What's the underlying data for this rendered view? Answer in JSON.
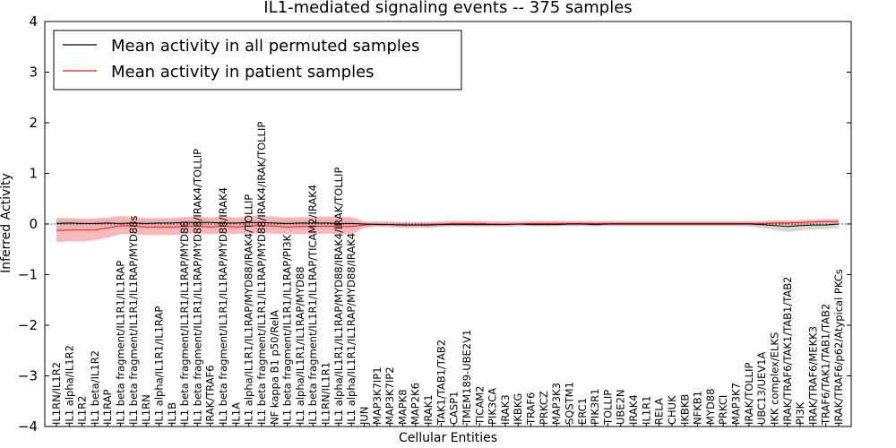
{
  "chart_data": {
    "type": "line",
    "title": "IL1-mediated signaling events -- 375 samples",
    "xlabel": "Cellular Entities",
    "ylabel": "Inferred Activity",
    "ylim": [
      -4,
      4
    ],
    "yticks": [
      "−4",
      "−3",
      "−2",
      "−1",
      "0",
      "1",
      "2",
      "3",
      "4"
    ],
    "legend_position": "top-left",
    "colors": {
      "permuted": "#000000",
      "patient": "#e41a1c",
      "patient_band": "#f4a3a3",
      "permuted_band": "#c8c8c8"
    },
    "categories": [
      "IL1RN/IL1R2",
      "IL1 alpha/IL1R2",
      "IL1R2",
      "IL1 beta/IL1R2",
      "IL1RAP",
      "IL1 beta fragment/IL1R1/IL1RAP",
      "IL1 beta fragment/IL1R1/IL1RAP/MYD88s",
      "IL1RN",
      "IL1 alpha/IL1R1/IL1RAP",
      "IL1B",
      "IL1 beta fragment/IL1R1/IL1RAP/MYD88",
      "IL1 beta fragment/IL1R1/IL1RAP/MYD88/IRAK4/TOLLIP",
      "IRAK/TRAF6",
      "IL1 beta fragment/IL1R1/IL1RAP/MYD88/IRAK4",
      "IL1A",
      "IL1 alpha/IL1R1/IL1RAP/MYD88/IRAK4/TOLLIP",
      "IL1 beta fragment/IL1R1/IL1RAP/MYD88/IRAK4/IRAK/TOLLIP",
      "NF kappa B1 p50/RelA",
      "IL1 beta fragment/IL1R1/IL1RAP/PI3K",
      "IL1 alpha/IL1R1/IL1RAP/MYD88",
      "IL1 beta fragment/IL1R1/IL1RAP/TICAM2/IRAK4",
      "IL1RN/IL1R1",
      "IL1 alpha/IL1R1/IL1RAP/MYD88/IRAK4/IRAK/TOLLIP",
      "IL1 alpha/IL1R1/IL1RAP/MYD88/IRAK4",
      "JUN",
      "MAP3K7IP1",
      "MAP3K7IP2",
      "MAPK8",
      "MAP2K6",
      "IRAK1",
      "TAK1/TAB1/TAB2",
      "CASP1",
      "TMEM189-UBE2V1",
      "TICAM2",
      "PIK3CA",
      "IRAK3",
      "IKBKG",
      "TRAF6",
      "PRKCZ",
      "MAP3K3",
      "SQSTM1",
      "ERC1",
      "PIK3R1",
      "TOLLIP",
      "UBE2N",
      "IRAK4",
      "IL1R1",
      "RELA",
      "CHUK",
      "IKBKB",
      "NFKB1",
      "MYD88",
      "PRKCI",
      "MAP3K7",
      "IRAK/TOLLIP",
      "UBC13/UEV1A",
      "IKK complex/ELKS",
      "IRAK/TRAF6/TAK1/TAB1/TAB2",
      "PI3K",
      "IRAK/TRAF6/MEKK3",
      "TRAF6/TAK1/TAB1/TAB2",
      "IRAK/TRAF6/p62/Atypical PKCs"
    ],
    "series": [
      {
        "name": "Mean activity in all permuted samples",
        "values": [
          0.01,
          0.02,
          0.01,
          0.01,
          0.02,
          0.01,
          0.02,
          0.01,
          0.02,
          0.02,
          0.03,
          0.03,
          0.03,
          0.02,
          0.02,
          0.03,
          0.03,
          0.02,
          0.01,
          0.02,
          0.02,
          0.02,
          0.01,
          0.01,
          0.0,
          -0.01,
          -0.01,
          -0.02,
          -0.02,
          -0.02,
          -0.01,
          -0.01,
          -0.01,
          -0.01,
          -0.01,
          -0.01,
          0.0,
          -0.01,
          -0.01,
          -0.01,
          0.0,
          0.0,
          -0.01,
          0.0,
          0.0,
          0.0,
          0.0,
          0.0,
          0.0,
          0.0,
          0.0,
          0.0,
          0.0,
          0.0,
          0.0,
          -0.01,
          -0.03,
          -0.05,
          -0.03,
          -0.02,
          -0.02,
          0.0
        ],
        "lower": [
          -0.12,
          -0.1,
          -0.1,
          -0.1,
          -0.09,
          -0.1,
          -0.09,
          -0.09,
          -0.1,
          -0.1,
          -0.1,
          -0.1,
          -0.1,
          -0.1,
          -0.1,
          -0.1,
          -0.1,
          -0.1,
          -0.1,
          -0.1,
          -0.1,
          -0.1,
          -0.1,
          -0.1,
          -0.06,
          -0.04,
          -0.05,
          -0.06,
          -0.07,
          -0.08,
          -0.06,
          -0.05,
          -0.05,
          -0.06,
          -0.05,
          -0.06,
          -0.04,
          -0.05,
          -0.05,
          -0.05,
          -0.04,
          -0.04,
          -0.05,
          -0.04,
          -0.04,
          -0.04,
          -0.04,
          -0.04,
          -0.04,
          -0.04,
          -0.04,
          -0.04,
          -0.04,
          -0.04,
          -0.05,
          -0.08,
          -0.12,
          -0.16,
          -0.13,
          -0.11,
          -0.1,
          -0.08
        ],
        "upper": [
          0.08,
          0.08,
          0.08,
          0.08,
          0.09,
          0.08,
          0.09,
          0.08,
          0.08,
          0.08,
          0.09,
          0.09,
          0.09,
          0.08,
          0.08,
          0.09,
          0.09,
          0.08,
          0.08,
          0.08,
          0.08,
          0.08,
          0.08,
          0.08,
          0.05,
          0.03,
          0.03,
          0.03,
          0.03,
          0.03,
          0.03,
          0.03,
          0.03,
          0.03,
          0.03,
          0.03,
          0.03,
          0.03,
          0.03,
          0.03,
          0.03,
          0.03,
          0.03,
          0.03,
          0.03,
          0.03,
          0.03,
          0.03,
          0.03,
          0.03,
          0.03,
          0.03,
          0.03,
          0.03,
          0.03,
          0.04,
          0.05,
          0.05,
          0.05,
          0.05,
          0.05,
          0.06
        ]
      },
      {
        "name": "Mean activity in patient samples",
        "values": [
          -0.13,
          -0.12,
          -0.12,
          -0.12,
          -0.08,
          -0.03,
          -0.04,
          -0.06,
          -0.06,
          -0.06,
          -0.05,
          -0.04,
          -0.06,
          -0.04,
          -0.06,
          -0.04,
          -0.03,
          -0.04,
          -0.06,
          -0.05,
          -0.05,
          -0.04,
          -0.05,
          -0.05,
          -0.02,
          0.0,
          -0.01,
          -0.02,
          -0.02,
          -0.01,
          0.0,
          0.01,
          0.01,
          0.01,
          0.0,
          0.0,
          0.0,
          0.01,
          0.01,
          0.01,
          0.01,
          0.01,
          0.01,
          0.01,
          0.01,
          0.01,
          0.01,
          0.01,
          0.01,
          0.01,
          0.01,
          0.01,
          0.01,
          0.01,
          0.01,
          0.01,
          0.02,
          0.02,
          0.03,
          0.04,
          0.05,
          0.05
        ],
        "lower": [
          -0.36,
          -0.34,
          -0.34,
          -0.32,
          -0.27,
          -0.2,
          -0.2,
          -0.22,
          -0.22,
          -0.22,
          -0.2,
          -0.19,
          -0.2,
          -0.19,
          -0.2,
          -0.19,
          -0.18,
          -0.19,
          -0.2,
          -0.2,
          -0.2,
          -0.19,
          -0.2,
          -0.2,
          -0.08,
          -0.05,
          -0.06,
          -0.07,
          -0.07,
          -0.06,
          -0.04,
          -0.03,
          -0.03,
          -0.03,
          -0.04,
          -0.04,
          -0.04,
          -0.03,
          -0.03,
          -0.03,
          -0.03,
          -0.03,
          -0.03,
          -0.03,
          -0.03,
          -0.03,
          -0.03,
          -0.03,
          -0.03,
          -0.03,
          -0.03,
          -0.03,
          -0.03,
          -0.03,
          -0.03,
          -0.03,
          -0.02,
          -0.02,
          -0.01,
          0.0,
          0.01,
          0.01
        ],
        "upper": [
          0.12,
          0.12,
          0.11,
          0.11,
          0.13,
          0.16,
          0.14,
          0.12,
          0.12,
          0.12,
          0.14,
          0.15,
          0.13,
          0.15,
          0.13,
          0.15,
          0.16,
          0.15,
          0.13,
          0.14,
          0.14,
          0.15,
          0.14,
          0.14,
          0.05,
          0.05,
          0.05,
          0.04,
          0.04,
          0.04,
          0.05,
          0.06,
          0.06,
          0.06,
          0.05,
          0.05,
          0.05,
          0.06,
          0.06,
          0.06,
          0.06,
          0.06,
          0.06,
          0.06,
          0.06,
          0.06,
          0.06,
          0.06,
          0.06,
          0.06,
          0.06,
          0.06,
          0.06,
          0.06,
          0.06,
          0.06,
          0.07,
          0.07,
          0.08,
          0.09,
          0.1,
          0.1
        ]
      }
    ]
  }
}
